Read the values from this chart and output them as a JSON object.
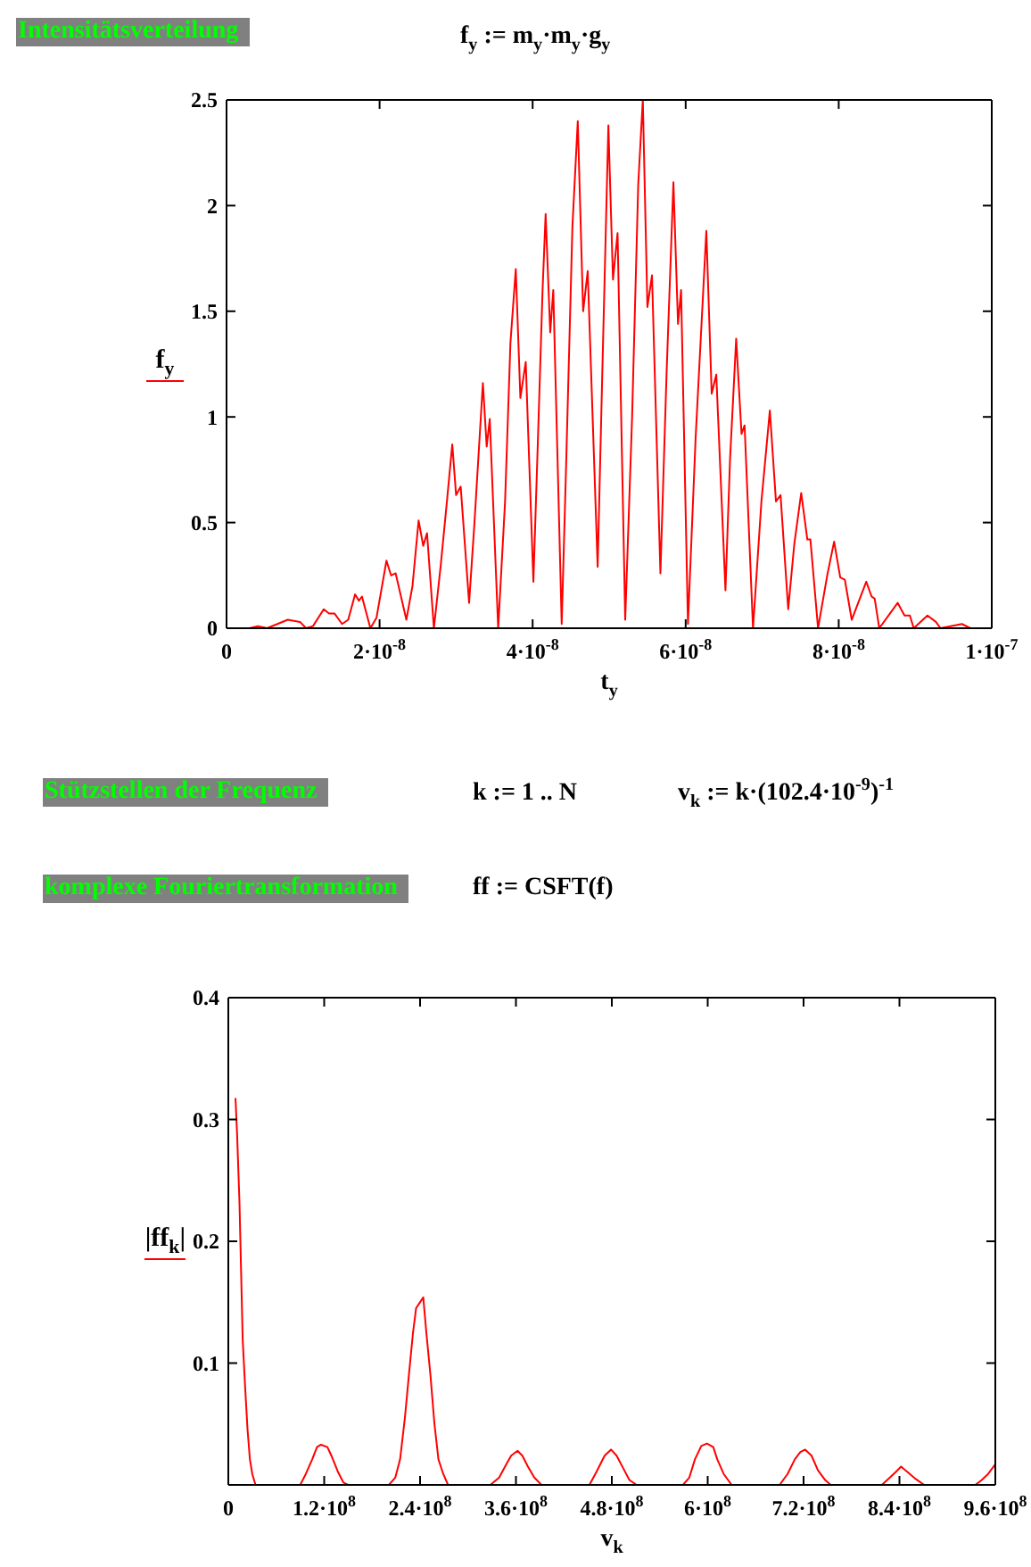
{
  "chart_data": [
    {
      "type": "line",
      "title": "Intensitätsverteilung",
      "subtitle": "f$_{y}$ := m$_{y}$·m$_{y}$·g$_{y}$",
      "xlabel": "t$_{y}$",
      "x": [
        0,
        3e-09,
        4.1e-09,
        5.3e-09,
        8e-09,
        9.6e-09,
        1.04e-08,
        1.13e-08,
        1.27e-08,
        1.34e-08,
        1.41e-08,
        1.51e-08,
        1.59e-08,
        1.68e-08,
        1.73e-08,
        1.77e-08,
        1.88e-08,
        1.96e-08,
        2.09e-08,
        2.15e-08,
        2.21e-08,
        2.35e-08,
        2.43e-08,
        2.51e-08,
        2.57e-08,
        2.62e-08,
        2.71e-08,
        2.8e-08,
        2.88e-08,
        2.95e-08,
        3e-08,
        3.06e-08,
        3.17e-08,
        3.24e-08,
        3.35e-08,
        3.4e-08,
        3.44e-08,
        3.55e-08,
        3.64e-08,
        3.71e-08,
        3.78e-08,
        3.84e-08,
        3.91e-08,
        4.01e-08,
        4.07e-08,
        4.13e-08,
        4.17e-08,
        4.23e-08,
        4.27e-08,
        4.38e-08,
        4.44e-08,
        4.52e-08,
        4.59e-08,
        4.66e-08,
        4.72e-08,
        4.85e-08,
        4.91e-08,
        4.99e-08,
        5.05e-08,
        5.11e-08,
        5.21e-08,
        5.3e-08,
        5.38e-08,
        5.44e-08,
        5.5e-08,
        5.56e-08,
        5.67e-08,
        5.75e-08,
        5.84e-08,
        5.9e-08,
        5.94e-08,
        6.03e-08,
        6.13e-08,
        6.27e-08,
        6.34e-08,
        6.4e-08,
        6.52e-08,
        6.58e-08,
        6.66e-08,
        6.73e-08,
        6.77e-08,
        6.88e-08,
        6.99e-08,
        7.1e-08,
        7.18e-08,
        7.24e-08,
        7.34e-08,
        7.42e-08,
        7.51e-08,
        7.59e-08,
        7.63e-08,
        7.73e-08,
        7.85e-08,
        7.94e-08,
        8.02e-08,
        8.08e-08,
        8.17e-08,
        8.36e-08,
        8.43e-08,
        8.47e-08,
        8.53e-08,
        8.77e-08,
        8.86e-08,
        8.93e-08,
        8.98e-08,
        9.16e-08,
        9.27e-08,
        9.33e-08,
        9.61e-08,
        9.72e-08,
        1e-07
      ],
      "series": [
        {
          "name": "f$_{y}$",
          "color": "#ff0000",
          "values": [
            0,
            0,
            0.01,
            0,
            0.04,
            0.03,
            0,
            0.01,
            0.09,
            0.07,
            0.07,
            0.02,
            0.04,
            0.16,
            0.13,
            0.15,
            0,
            0.05,
            0.32,
            0.25,
            0.26,
            0.04,
            0.2,
            0.51,
            0.39,
            0.45,
            0,
            0.3,
            0.6,
            0.87,
            0.63,
            0.67,
            0.12,
            0.5,
            1.16,
            0.86,
            0.99,
            0,
            0.6,
            1.35,
            1.7,
            1.09,
            1.26,
            0.22,
            0.9,
            1.6,
            1.96,
            1.4,
            1.6,
            0.02,
            0.8,
            1.9,
            2.4,
            1.5,
            1.69,
            0.29,
            1.2,
            2.38,
            1.65,
            1.87,
            0.04,
            1.0,
            2.1,
            2.5,
            1.52,
            1.67,
            0.26,
            1.2,
            2.11,
            1.44,
            1.6,
            0.02,
            0.9,
            1.88,
            1.11,
            1.2,
            0.18,
            0.8,
            1.37,
            0.92,
            0.96,
            0,
            0.6,
            1.03,
            0.6,
            0.63,
            0.09,
            0.4,
            0.64,
            0.42,
            0.42,
            0,
            0.25,
            0.41,
            0.24,
            0.23,
            0.04,
            0.22,
            0.15,
            0.14,
            0,
            0.12,
            0.06,
            0.06,
            0,
            0.06,
            0.03,
            0,
            0.02,
            0,
            0
          ]
        }
      ],
      "xlim": [
        0,
        1e-07
      ],
      "xticks": [
        0,
        {
          "value": 2e-08,
          "label": "2·10$^{-8}$"
        },
        {
          "value": 4e-08,
          "label": "4·10$^{-8}$"
        },
        {
          "value": 6e-08,
          "label": "6·10$^{-8}$"
        },
        {
          "value": 8e-08,
          "label": "8·10$^{-8}$"
        },
        {
          "value": 1e-07,
          "label": "1·10$^{-7}$"
        }
      ],
      "ylim": [
        0,
        2.5
      ],
      "yticks": [
        0,
        0.5,
        1,
        1.5,
        2,
        2.5
      ],
      "legend": "left"
    },
    {
      "type": "line",
      "annotations": [
        "Stützstellen der Frequenz",
        "k := 1 .. N",
        "v$_{k}$ := k·(102.4·10$^{-9}$)$^{-1}$",
        "komplexe Fouriertransformation",
        "ff := CSFT(f)"
      ],
      "xlabel": "v$_{k}$",
      "x": [
        9000000.0,
        11000000.0,
        14000000.0,
        16000000.0,
        18000000.0,
        21000000.0,
        24000000.0,
        27000000.0,
        30000000.0,
        34000000.0,
        90000000.0,
        97000000.0,
        105000000.0,
        111000000.0,
        116000000.0,
        124000000.0,
        129000000.0,
        137000000.0,
        144000000.0,
        150000000.0,
        201000000.0,
        209000000.0,
        215000000.0,
        221000000.0,
        226000000.0,
        231000000.0,
        235000000.0,
        239000000.0,
        244000000.0,
        248000000.0,
        253000000.0,
        258000000.0,
        263000000.0,
        269000000.0,
        275000000.0,
        328000000.0,
        339000000.0,
        348000000.0,
        354000000.0,
        362000000.0,
        368000000.0,
        375000000.0,
        383000000.0,
        392000000.0,
        452000000.0,
        461000000.0,
        471000000.0,
        479000000.0,
        486000000.0,
        494000000.0,
        502000000.0,
        511000000.0,
        569000000.0,
        577000000.0,
        584000000.0,
        592000000.0,
        599000000.0,
        607000000.0,
        612000000.0,
        620000000.0,
        630000000.0,
        690000000.0,
        700000000.0,
        709000000.0,
        716000000.0,
        722000000.0,
        730000000.0,
        738000000.0,
        747000000.0,
        754000000.0,
        818000000.0,
        828000000.0,
        836000000.0,
        842000000.0,
        851000000.0,
        860000000.0,
        871000000.0,
        935000000.0,
        943000000.0,
        951000000.0,
        960000000.0
      ],
      "series": [
        {
          "name": "|ff$_{k}$|",
          "color": "#ff0000",
          "values": [
            0.317,
            0.288,
            0.231,
            0.175,
            0.119,
            0.081,
            0.046,
            0.021,
            0.009,
            0,
            0,
            0.009,
            0.021,
            0.031,
            0.033,
            0.031,
            0.024,
            0.011,
            0.002,
            0,
            0,
            0.006,
            0.021,
            0.055,
            0.09,
            0.124,
            0.145,
            0.149,
            0.154,
            0.124,
            0.09,
            0.05,
            0.021,
            0.009,
            0,
            0,
            0.006,
            0.017,
            0.024,
            0.028,
            0.024,
            0.015,
            0.006,
            0,
            0,
            0.011,
            0.024,
            0.029,
            0.024,
            0.014,
            0.004,
            0,
            0,
            0.006,
            0.021,
            0.032,
            0.034,
            0.031,
            0.021,
            0.009,
            0,
            0,
            0.009,
            0.021,
            0.027,
            0.029,
            0.024,
            0.012,
            0.004,
            0,
            0,
            0.006,
            0.011,
            0.015,
            0.01,
            0.005,
            0,
            0,
            0.004,
            0.009,
            0.017
          ]
        }
      ],
      "xlim": [
        0,
        960000000.0
      ],
      "xticks": [
        0,
        {
          "value": 120000000.0,
          "label": "1.2·10$^{8}$"
        },
        {
          "value": 240000000.0,
          "label": "2.4·10$^{8}$"
        },
        {
          "value": 360000000.0,
          "label": "3.6·10$^{8}$"
        },
        {
          "value": 480000000.0,
          "label": "4.8·10$^{8}$"
        },
        {
          "value": 600000000.0,
          "label": "6·10$^{8}$"
        },
        {
          "value": 720000000.0,
          "label": "7.2·10$^{8}$"
        },
        {
          "value": 840000000.0,
          "label": "8.4·10$^{8}$"
        },
        {
          "value": 960000000.0,
          "label": "9.6·10$^{8}$"
        }
      ],
      "ylim": [
        0,
        0.4
      ],
      "yticks": [
        0.1,
        0.2,
        0.3,
        0.4
      ],
      "legend": "left"
    }
  ]
}
